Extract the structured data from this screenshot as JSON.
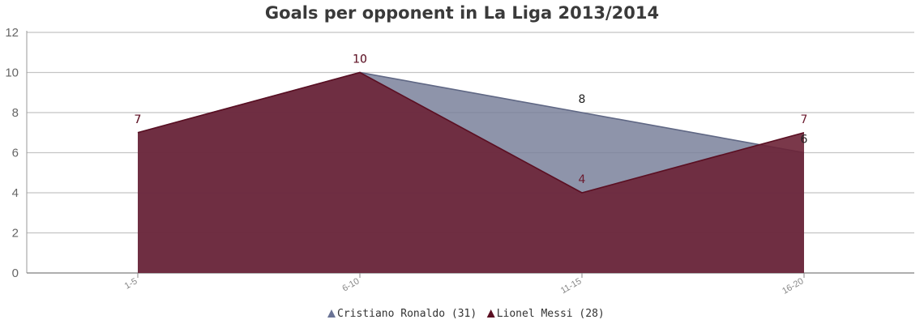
{
  "chart_data": {
    "type": "area",
    "title": "Goals per opponent in La Liga 2013/2014",
    "xlabel": "",
    "ylabel": "",
    "categories": [
      "1-5",
      "6-10",
      "11-15",
      "16-20"
    ],
    "ylim": [
      0,
      12
    ],
    "yticks": [
      0,
      2,
      4,
      6,
      8,
      10,
      12
    ],
    "grid": true,
    "legend_position": "bottom-center",
    "series": [
      {
        "name": "Cristiano Ronaldo (31)",
        "values": [
          7,
          10,
          8,
          6
        ],
        "color": "#7a819b",
        "line_color": "#5f6784",
        "label_color": "#222222"
      },
      {
        "name": "Lionel Messi (28)",
        "values": [
          7,
          10,
          4,
          7
        ],
        "color": "#6b2236",
        "line_color": "#5a0f22",
        "label_color": "#6b1a2e"
      }
    ]
  }
}
